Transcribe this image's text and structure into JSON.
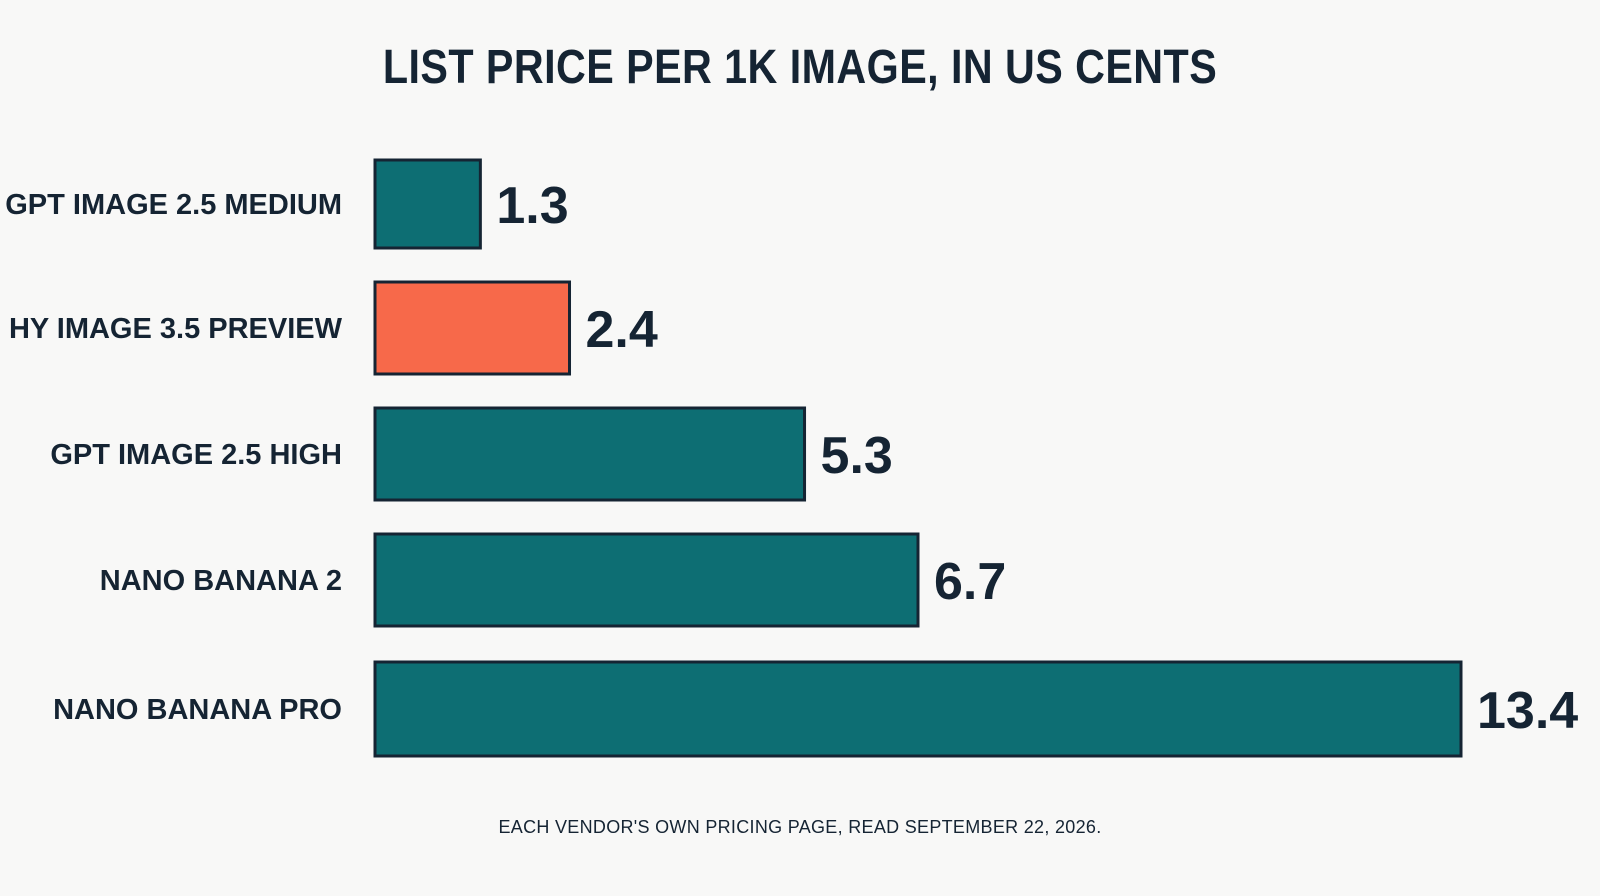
{
  "chart_data": {
    "type": "bar",
    "orientation": "horizontal",
    "title": "LIST PRICE PER 1K IMAGE, IN US CENTS",
    "categories": [
      "GPT IMAGE 2.5 MEDIUM",
      "HY IMAGE 3.5 PREVIEW",
      "GPT IMAGE 2.5 HIGH",
      "NANO BANANA 2",
      "NANO BANANA PRO"
    ],
    "values": [
      1.3,
      2.4,
      5.3,
      6.7,
      13.4
    ],
    "value_labels": [
      "1.3",
      "2.4",
      "5.3",
      "6.7",
      "13.4"
    ],
    "xlim": [
      0,
      13.4
    ],
    "grid": false,
    "legend": "none",
    "colors": {
      "default_bar": "#0d6e73",
      "highlight_bar": "#f7694a",
      "outline": "#152433",
      "text": "#152433",
      "background": "#f8f8f7"
    },
    "highlight_index": 1,
    "footnote": "EACH VENDOR'S OWN PRICING PAGE, READ SEPTEMBER 22, 2026."
  }
}
